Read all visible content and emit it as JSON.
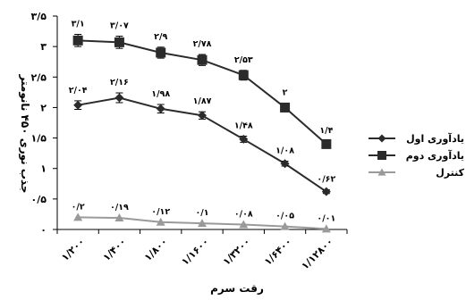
{
  "chart_data": {
    "type": "line",
    "xlabel": "رقت سرم",
    "ylabel": "جذب نوری ۴۵۰ نانومتر",
    "categories": [
      "۱/۲۰۰",
      "۱/۴۰۰",
      "۱/۸۰۰",
      "۱/۱۶۰۰",
      "۱/۳۲۰۰",
      "۱/۶۴۰۰",
      "۱/۱۲۸۰۰"
    ],
    "ylim": [
      0,
      3.5
    ],
    "yticks": [
      {
        "value": 0,
        "label": "۰"
      },
      {
        "value": 0.5,
        "label": "۰/۵"
      },
      {
        "value": 1,
        "label": "۱"
      },
      {
        "value": 1.5,
        "label": "۱/۵"
      },
      {
        "value": 2,
        "label": "۲"
      },
      {
        "value": 2.5,
        "label": "۲/۵"
      },
      {
        "value": 3,
        "label": "۳"
      },
      {
        "value": 3.5,
        "label": "۳/۵"
      }
    ],
    "grid": false,
    "legend_position": "right",
    "series": [
      {
        "name": "یادآوری اول",
        "marker": "diamond",
        "color": "#2b2b2b",
        "values": [
          2.04,
          2.16,
          1.98,
          1.87,
          1.48,
          1.08,
          0.62
        ],
        "labels": [
          "۲/۰۴",
          "۲/۱۶",
          "۱/۹۸",
          "۱/۸۷",
          "۱/۴۸",
          "۱/۰۸",
          "۰/۶۲"
        ],
        "errors": [
          0.07,
          0.08,
          0.07,
          0.06,
          0.05,
          0.04,
          0.03
        ]
      },
      {
        "name": "یادآوری دوم",
        "marker": "square",
        "color": "#2b2b2b",
        "values": [
          3.1,
          3.07,
          2.9,
          2.78,
          2.53,
          2.0,
          1.4
        ],
        "labels": [
          "۳/۱",
          "۳/۰۷",
          "۲/۹",
          "۲/۷۸",
          "۲/۵۳",
          "۲",
          "۱/۴"
        ],
        "errors": [
          0.1,
          0.1,
          0.09,
          0.09,
          0.08,
          0.07,
          0.05
        ]
      },
      {
        "name": "کنترل",
        "marker": "triangle",
        "color": "#9a9a9a",
        "values": [
          0.2,
          0.19,
          0.12,
          0.1,
          0.08,
          0.05,
          0.01
        ],
        "labels": [
          "۰/۲",
          "۰/۱۹",
          "۰/۱۲",
          "۰/۱",
          "۰/۰۸",
          "۰/۰۵",
          "۰/۰۱"
        ],
        "errors": [
          0,
          0,
          0,
          0,
          0,
          0,
          0
        ]
      }
    ]
  }
}
